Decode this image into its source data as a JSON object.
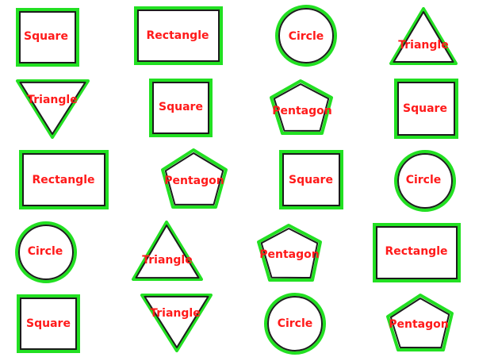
{
  "colors": {
    "background": "#ffffff",
    "outline": "#22e022",
    "shape_edge": "#1c1c1c",
    "label": "#ff1a1a"
  },
  "shapes": [
    {
      "type": "square",
      "label": "Square"
    },
    {
      "type": "rectangle",
      "label": "Rectangle"
    },
    {
      "type": "circle",
      "label": "Circle"
    },
    {
      "type": "triangle-up",
      "label": "Triangle"
    },
    {
      "type": "triangle-down",
      "label": "Triangle"
    },
    {
      "type": "square",
      "label": "Square"
    },
    {
      "type": "pentagon",
      "label": "Pentagon"
    },
    {
      "type": "square",
      "label": "Square"
    },
    {
      "type": "rectangle",
      "label": "Rectangle"
    },
    {
      "type": "pentagon",
      "label": "Pentagon"
    },
    {
      "type": "square",
      "label": "Square"
    },
    {
      "type": "circle",
      "label": "Circle"
    },
    {
      "type": "circle",
      "label": "Circle"
    },
    {
      "type": "triangle-up",
      "label": "Triangle"
    },
    {
      "type": "pentagon",
      "label": "Pentagon"
    },
    {
      "type": "rectangle",
      "label": "Rectangle"
    },
    {
      "type": "square",
      "label": "Square"
    },
    {
      "type": "triangle-down",
      "label": "Triangle"
    },
    {
      "type": "circle",
      "label": "Circle"
    },
    {
      "type": "pentagon",
      "label": "Pentagon"
    }
  ]
}
